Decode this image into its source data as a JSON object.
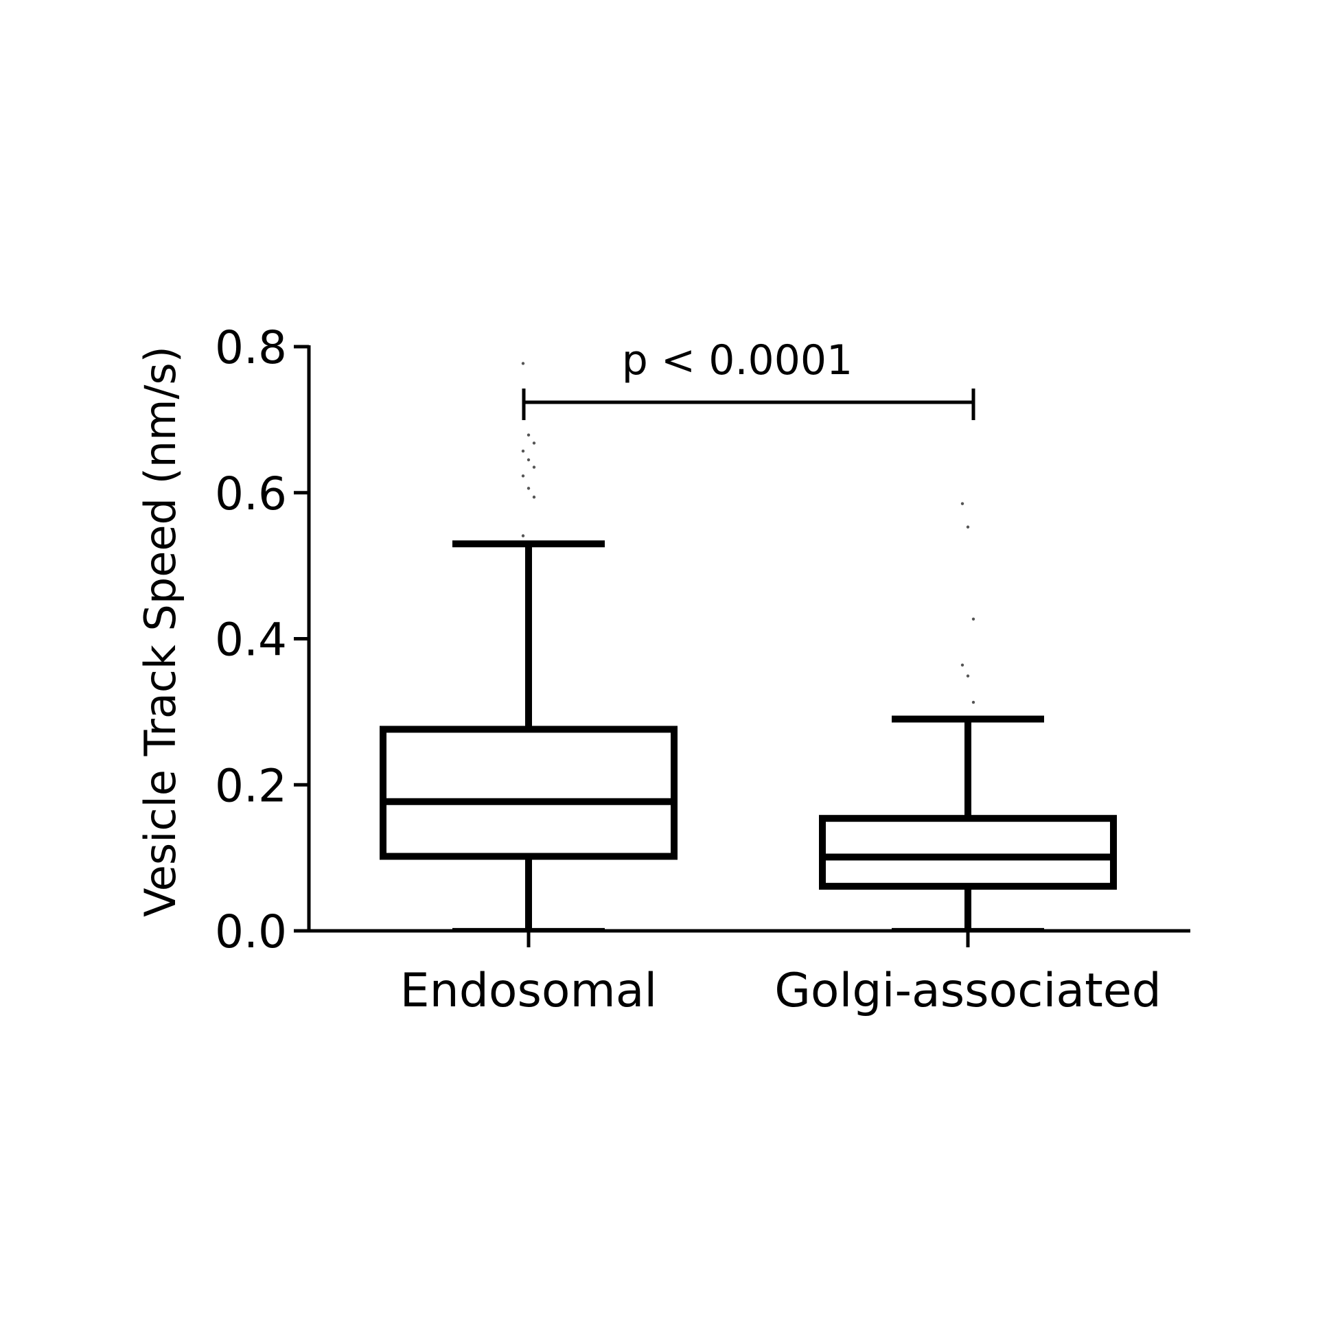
{
  "chart_data": {
    "type": "box",
    "y_label": "Vesicle Track Speed  (nm/s)",
    "categories": [
      "Endosomal",
      "Golgi-associated"
    ],
    "boxes": [
      {
        "min": 0.002,
        "q1": 0.102,
        "median": 0.177,
        "q3": 0.276,
        "max": 0.53,
        "outliers": [
          0.777,
          0.679,
          0.668,
          0.657,
          0.645,
          0.635,
          0.623,
          0.606,
          0.594,
          0.541
        ]
      },
      {
        "min": 0.002,
        "q1": 0.061,
        "median": 0.101,
        "q3": 0.154,
        "max": 0.29,
        "outliers": [
          0.585,
          0.553,
          0.427,
          0.364,
          0.349,
          0.313
        ]
      }
    ],
    "color": "#000000",
    "annotation": "p < 0.0001",
    "ylim": [
      0,
      0.8
    ],
    "yticks": [
      {
        "value": 0,
        "label": "0.0"
      },
      0.2,
      0.4,
      0.6,
      0.8
    ]
  }
}
